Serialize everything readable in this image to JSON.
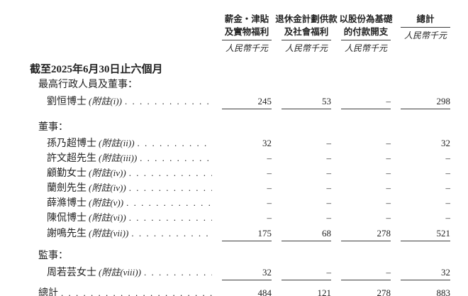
{
  "table": {
    "period_header": "截至2025年6月30日止六個月",
    "columns": [
      {
        "line1": "薪金‧津貼",
        "line2": "及實物福利",
        "unit": "人民幣千元"
      },
      {
        "line1": "退休金計劃供款",
        "line2": "及社會福利",
        "unit": "人民幣千元"
      },
      {
        "line1": "以股份為基礎",
        "line2": "的付款開支",
        "unit": "人民幣千元"
      },
      {
        "line1": "",
        "line2": "總計",
        "unit": "人民幣千元"
      }
    ],
    "rows": [
      {
        "type": "section",
        "label": "最高行政人員及董事："
      },
      {
        "type": "item",
        "label": "劉恒博士",
        "note": "(附註(i))",
        "values": [
          "245",
          "53",
          "–",
          "298"
        ],
        "rule": "single"
      },
      {
        "type": "section",
        "label": "董事：",
        "spacer": true
      },
      {
        "type": "item",
        "label": "孫乃超博士",
        "note": "(附註(ii))",
        "values": [
          "32",
          "–",
          "–",
          "32"
        ]
      },
      {
        "type": "item",
        "label": "許文超先生",
        "note": "(附註(iii))",
        "values": [
          "–",
          "–",
          "–",
          "–"
        ]
      },
      {
        "type": "item",
        "label": "顧勤女士",
        "note": "(附註(iv))",
        "values": [
          "–",
          "–",
          "–",
          "–"
        ]
      },
      {
        "type": "item",
        "label": "蘭劍先生",
        "note": "(附註(iv))",
        "values": [
          "–",
          "–",
          "–",
          "–"
        ]
      },
      {
        "type": "item",
        "label": "薛滌博士",
        "note": "(附註(v))",
        "values": [
          "–",
          "–",
          "–",
          "–"
        ]
      },
      {
        "type": "item",
        "label": "陳侃博士",
        "note": "(附註(vi))",
        "values": [
          "–",
          "–",
          "–",
          "–"
        ]
      },
      {
        "type": "item",
        "label": "謝鳴先生",
        "note": "(附註(vii))",
        "values": [
          "175",
          "68",
          "278",
          "521"
        ],
        "rule": "single"
      },
      {
        "type": "section",
        "label": "監事：",
        "spacer": true
      },
      {
        "type": "item",
        "label": "周若芸女士",
        "note": "(附註(viii))",
        "values": [
          "32",
          "–",
          "–",
          "32"
        ],
        "rule": "single"
      },
      {
        "type": "total",
        "label": "總計",
        "values": [
          "484",
          "121",
          "278",
          "883"
        ],
        "rule": "double",
        "spacer": true
      }
    ]
  },
  "colors": {
    "text": "#232323",
    "line": "#3c3c3c",
    "background": "#ffffff"
  }
}
